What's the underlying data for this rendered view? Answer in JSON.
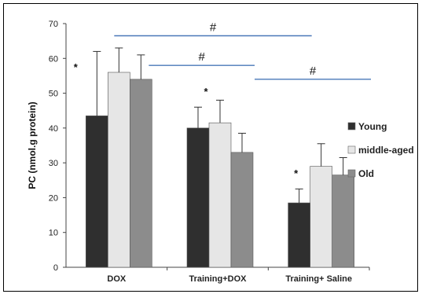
{
  "chart_data": {
    "type": "bar",
    "title": "",
    "xlabel": "",
    "ylabel": "PC (nmol.g protein)",
    "ylim": [
      0,
      70
    ],
    "yticks": [
      0,
      10,
      20,
      30,
      40,
      50,
      60,
      70
    ],
    "categories": [
      "DOX",
      "Training+DOX",
      "Training+ Saline"
    ],
    "series": [
      {
        "name": "Young",
        "color": "#2f2f2f",
        "values": [
          43.5,
          40,
          18.5
        ],
        "errors": [
          18.5,
          6,
          4
        ]
      },
      {
        "name": "middle-aged",
        "color": "#e6e6e6",
        "values": [
          56,
          41.5,
          29
        ],
        "errors": [
          7,
          6.5,
          6.5
        ]
      },
      {
        "name": "Old",
        "color": "#8c8c8c",
        "values": [
          54,
          33,
          26.5
        ],
        "errors": [
          7,
          5.5,
          5
        ]
      }
    ],
    "legend_position": "right",
    "grid": false,
    "annotations": {
      "stars": [
        {
          "category": 0,
          "series": 0,
          "text": "*"
        },
        {
          "category": 1,
          "series": 0,
          "text": "*"
        },
        {
          "category": 2,
          "series": 0,
          "text": "*"
        }
      ],
      "brackets": [
        {
          "from_category": 0,
          "to_category": 2,
          "text": "#",
          "value": 66.5
        },
        {
          "from_category": 0,
          "to_category": 1,
          "text": "#",
          "value": 58
        },
        {
          "from_category": 1,
          "to_category": 2,
          "text": "#",
          "value": 54
        }
      ]
    }
  }
}
